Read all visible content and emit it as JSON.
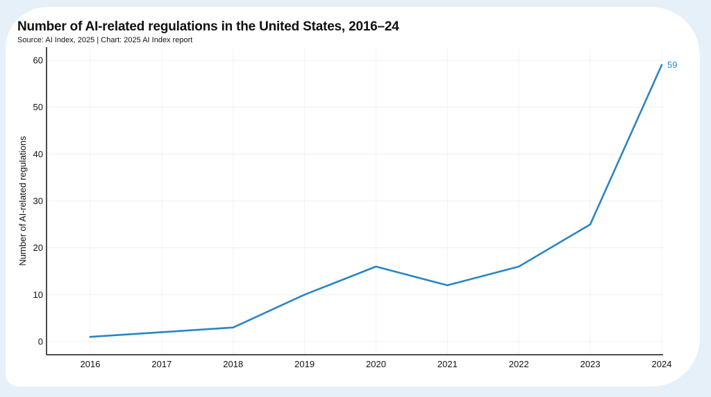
{
  "chart_data": {
    "type": "line",
    "title": "Number of AI-related regulations in the United States, 2016–24",
    "subtitle": "Source: AI Index, 2025 | Chart: 2025 AI Index report",
    "xlabel": "",
    "ylabel": "Number of AI-related regulations",
    "categories": [
      "2016",
      "2017",
      "2018",
      "2019",
      "2020",
      "2021",
      "2022",
      "2023",
      "2024"
    ],
    "series": [
      {
        "name": "Number of AI-related regulations",
        "values": [
          1,
          2,
          3,
          10,
          16,
          12,
          16,
          25,
          59
        ],
        "color": "#2a85c2"
      }
    ],
    "yticks": [
      "0",
      "10",
      "20",
      "30",
      "40",
      "50",
      "60"
    ],
    "ylim": [
      -3,
      62
    ],
    "grid": true,
    "end_label": "59",
    "legend": "none"
  }
}
